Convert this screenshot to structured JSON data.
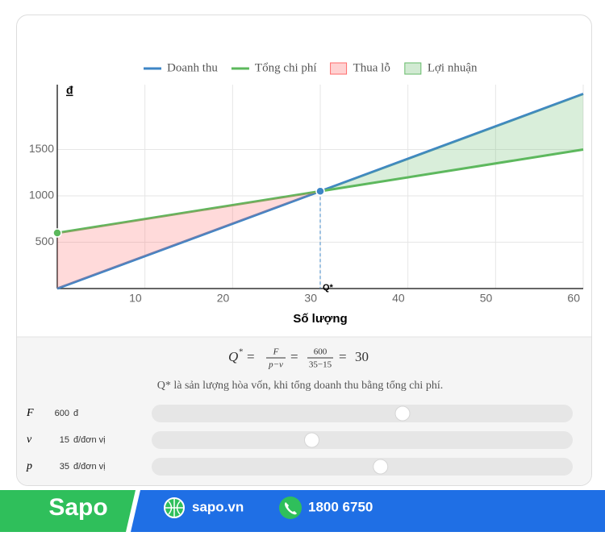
{
  "chart_data": {
    "type": "line",
    "legend": "top",
    "x": [
      0,
      30,
      60
    ],
    "series": [
      {
        "name": "Doanh thu",
        "color": "#3d85c6",
        "values": [
          0,
          1050,
          2100
        ]
      },
      {
        "name": "Tổng chi phí",
        "color": "#5cb85c",
        "values": [
          600,
          1050,
          1500
        ]
      }
    ],
    "areas": [
      {
        "name": "Thua lỗ",
        "color": "#ff6b6b"
      },
      {
        "name": "Lợi nhuận",
        "color": "#66bb6a"
      }
    ],
    "points": [
      {
        "x": 0,
        "y": 600,
        "color": "#5cb85c"
      },
      {
        "x": 30,
        "y": 1050,
        "color": "#3d85c6"
      }
    ],
    "break_even_label": "Q*",
    "xlabel": "Số lượng",
    "ylabel": "đ",
    "xlim": [
      0,
      60
    ],
    "ylim": [
      0,
      2200
    ],
    "xticks": [
      10,
      20,
      30,
      40,
      50,
      60
    ],
    "yticks": [
      500,
      1000,
      1500
    ],
    "grid": true
  },
  "formula": {
    "lhs": "Q",
    "sup": "*",
    "equals": "=",
    "num1": "F",
    "den1": "p−v",
    "num2": "600",
    "den2": "35−15",
    "result": "30"
  },
  "note": "Q* là sản lượng hòa vốn, khi tổng doanh thu bằng tổng chi phí.",
  "controls": [
    {
      "symbol": "F",
      "value": 600,
      "unit": "đ",
      "range": [
        0,
        1000
      ]
    },
    {
      "symbol": "v",
      "value": 15,
      "unit": "đ/đơn vị",
      "range": [
        0,
        40
      ]
    },
    {
      "symbol": "p",
      "value": 35,
      "unit": "đ/đơn vị",
      "range": [
        5,
        60
      ]
    }
  ],
  "footer": {
    "brand": "Sapo",
    "website": "sapo.vn",
    "phone": "1800 6750"
  }
}
